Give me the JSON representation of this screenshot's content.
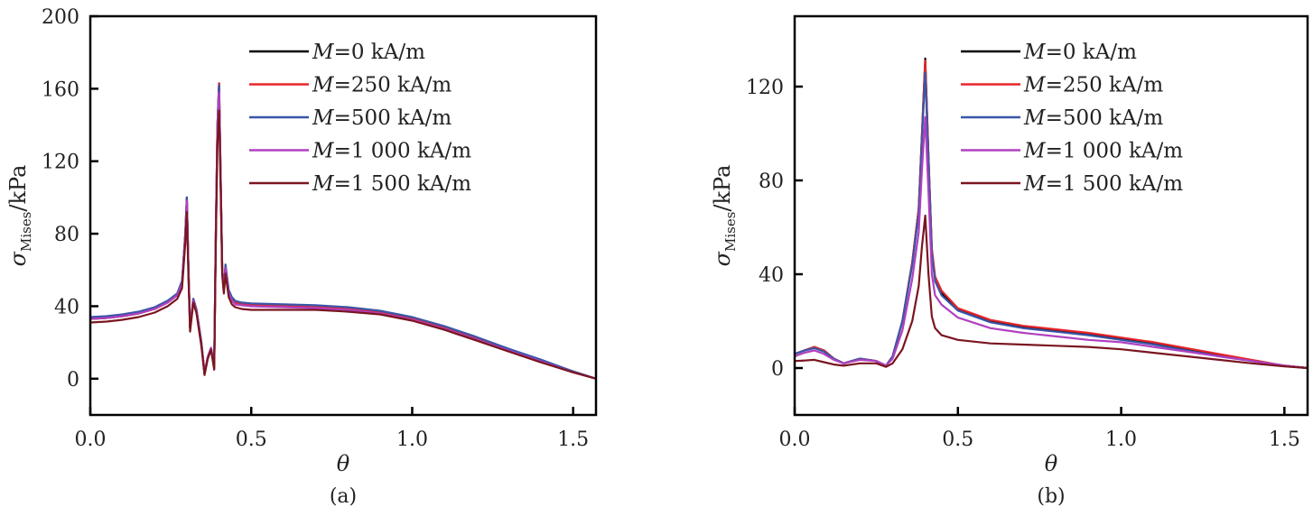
{
  "chart_data": [
    {
      "type": "line",
      "panel": "a",
      "caption": "(a)",
      "xlabel": "θ",
      "ylabel": "σ",
      "ylabel_sub": "Mises",
      "ylabel_unit": "/kPa",
      "xlim": [
        0,
        1.571
      ],
      "ylim": [
        -20,
        200
      ],
      "xticks": [
        0.0,
        0.5,
        1.0,
        1.5
      ],
      "xtick_labels": [
        "0.0",
        "0.5",
        "1.0",
        "1.5"
      ],
      "yticks": [
        0,
        40,
        80,
        120,
        160,
        200
      ],
      "ytick_labels": [
        "0",
        "40",
        "80",
        "120",
        "160",
        "200"
      ],
      "grid": false,
      "legend_position": "top-right",
      "x": [
        0.0,
        0.05,
        0.1,
        0.15,
        0.2,
        0.24,
        0.27,
        0.285,
        0.295,
        0.3,
        0.305,
        0.31,
        0.32,
        0.33,
        0.345,
        0.355,
        0.365,
        0.375,
        0.385,
        0.39,
        0.395,
        0.4,
        0.405,
        0.41,
        0.415,
        0.42,
        0.43,
        0.44,
        0.45,
        0.47,
        0.5,
        0.6,
        0.7,
        0.8,
        0.9,
        1.0,
        1.1,
        1.2,
        1.3,
        1.4,
        1.5,
        1.571
      ],
      "series": [
        {
          "name": "M=0 kA/m",
          "label_math": "M",
          "label_value": "0 kA/m",
          "color": "#000000",
          "values": [
            33,
            33.5,
            34.5,
            36,
            38.5,
            42,
            46,
            53,
            80,
            100,
            60,
            28,
            44,
            38,
            20,
            3,
            12,
            17,
            6,
            80,
            140,
            163,
            110,
            60,
            50,
            62,
            48,
            44,
            42,
            41,
            40.5,
            40,
            39.5,
            38.5,
            36.5,
            33,
            28,
            22,
            16,
            10,
            4,
            0
          ]
        },
        {
          "name": "M=250 kA/m",
          "label_math": "M",
          "label_value": "250 kA/m",
          "color": "#e8262b",
          "values": [
            33,
            33.5,
            34.5,
            36,
            38.5,
            42,
            46,
            53,
            80,
            100,
            60,
            28,
            44,
            38,
            20,
            3,
            12,
            17,
            6,
            80,
            140,
            163,
            110,
            60,
            50,
            62,
            48,
            44,
            42,
            41,
            40.5,
            40,
            39.5,
            38.5,
            36.5,
            33,
            28,
            22,
            16,
            10,
            4,
            0
          ]
        },
        {
          "name": "M=500 kA/m",
          "label_math": "M",
          "label_value": "500 kA/m",
          "color": "#3a56a8",
          "values": [
            34,
            34.5,
            35.5,
            37,
            39.5,
            43,
            47,
            54,
            80,
            100,
            60,
            28,
            44,
            38,
            20,
            3,
            12,
            17,
            6,
            80,
            140,
            162,
            110,
            60,
            51,
            63,
            49,
            45,
            43,
            42,
            41.5,
            41,
            40.5,
            39.5,
            37.5,
            34,
            29,
            23,
            16.5,
            10.5,
            4,
            0
          ]
        },
        {
          "name": "M=1 000 kA/m",
          "label_math": "M",
          "label_value": "1 000 kA/m",
          "color": "#b040c0",
          "values": [
            33,
            33.5,
            34.5,
            36,
            38.5,
            42,
            46,
            52,
            78,
            98,
            59,
            28,
            43,
            37,
            19,
            3,
            12,
            17,
            6,
            78,
            138,
            158,
            108,
            59,
            49,
            61,
            47,
            43,
            41,
            40.5,
            40,
            39.5,
            39,
            38,
            36,
            32.5,
            27.5,
            21.5,
            15.5,
            9.5,
            3.5,
            0
          ]
        },
        {
          "name": "M=1 500 kA/m",
          "label_math": "M",
          "label_value": "1 500 kA/m",
          "color": "#7a1520",
          "values": [
            31,
            31.5,
            32.5,
            34,
            36.5,
            40,
            44,
            50,
            75,
            92,
            56,
            26,
            42,
            36,
            18,
            2,
            11,
            16,
            5,
            75,
            130,
            148,
            104,
            57,
            47,
            58,
            45,
            41,
            39.5,
            38.5,
            38,
            38,
            38,
            37,
            35.5,
            32,
            27,
            21,
            15,
            9,
            3.5,
            0
          ]
        }
      ]
    },
    {
      "type": "line",
      "panel": "b",
      "caption": "(b)",
      "xlabel": "θ",
      "ylabel": "σ",
      "ylabel_sub": "Mises",
      "ylabel_unit": "/kPa",
      "xlim": [
        0,
        1.571
      ],
      "ylim": [
        -20,
        150
      ],
      "xticks": [
        0.0,
        0.5,
        1.0,
        1.5
      ],
      "xtick_labels": [
        "0.0",
        "0.5",
        "1.0",
        "1.5"
      ],
      "yticks": [
        0,
        40,
        80,
        120
      ],
      "ytick_labels": [
        "0",
        "40",
        "80",
        "120"
      ],
      "grid": false,
      "legend_position": "top-right",
      "x": [
        0.0,
        0.03,
        0.06,
        0.09,
        0.12,
        0.15,
        0.2,
        0.25,
        0.28,
        0.3,
        0.33,
        0.36,
        0.38,
        0.39,
        0.4,
        0.41,
        0.42,
        0.43,
        0.45,
        0.5,
        0.6,
        0.7,
        0.8,
        0.9,
        1.0,
        1.1,
        1.2,
        1.3,
        1.4,
        1.5,
        1.571
      ],
      "series": [
        {
          "name": "M=0 kA/m",
          "label_math": "M",
          "label_value": "0 kA/m",
          "color": "#000000",
          "values": [
            6,
            7.5,
            9,
            7.5,
            4,
            2,
            4,
            3,
            1,
            5,
            20,
            45,
            68,
            100,
            132,
            90,
            50,
            38,
            32,
            25,
            20,
            17.5,
            16,
            14.5,
            12.5,
            10.5,
            8,
            5.5,
            3,
            1,
            0
          ]
        },
        {
          "name": "M=250 kA/m",
          "label_math": "M",
          "label_value": "250 kA/m",
          "color": "#e8262b",
          "values": [
            6,
            7.5,
            9,
            7.5,
            4,
            2,
            4,
            3,
            1,
            5,
            20,
            45,
            68,
            100,
            131,
            90,
            51,
            39,
            33,
            25.5,
            20.5,
            18,
            16.5,
            15,
            13,
            11,
            8.5,
            6,
            3.5,
            1,
            0
          ]
        },
        {
          "name": "M=500 kA/m",
          "label_math": "M",
          "label_value": "500 kA/m",
          "color": "#3a56a8",
          "values": [
            6,
            7.5,
            8.5,
            7,
            4,
            2,
            4,
            3,
            1,
            5,
            20,
            44,
            66,
            98,
            126,
            88,
            49,
            37,
            31,
            24.5,
            19.5,
            17,
            15.5,
            14,
            12,
            10,
            7.5,
            5,
            3,
            1,
            0
          ]
        },
        {
          "name": "M=1 000 kA/m",
          "label_math": "M",
          "label_value": "1 000 kA/m",
          "color": "#b040c0",
          "values": [
            5,
            6.5,
            7.5,
            6,
            3.5,
            2,
            3.5,
            3,
            1,
            4,
            16,
            38,
            58,
            85,
            107,
            75,
            40,
            31,
            27,
            21.5,
            17,
            15,
            13.5,
            12,
            11,
            9,
            7,
            5,
            3,
            1,
            0
          ]
        },
        {
          "name": "M=1 500 kA/m",
          "label_math": "M",
          "label_value": "1 500 kA/m",
          "color": "#7a1520",
          "values": [
            3,
            3.2,
            3.5,
            2.5,
            1.5,
            1,
            2,
            2,
            0.5,
            2,
            8,
            20,
            35,
            52,
            65,
            40,
            22,
            17,
            14,
            12,
            10.5,
            10,
            9.5,
            9,
            8,
            6.5,
            5,
            3.5,
            2,
            0.7,
            0
          ]
        }
      ]
    }
  ]
}
